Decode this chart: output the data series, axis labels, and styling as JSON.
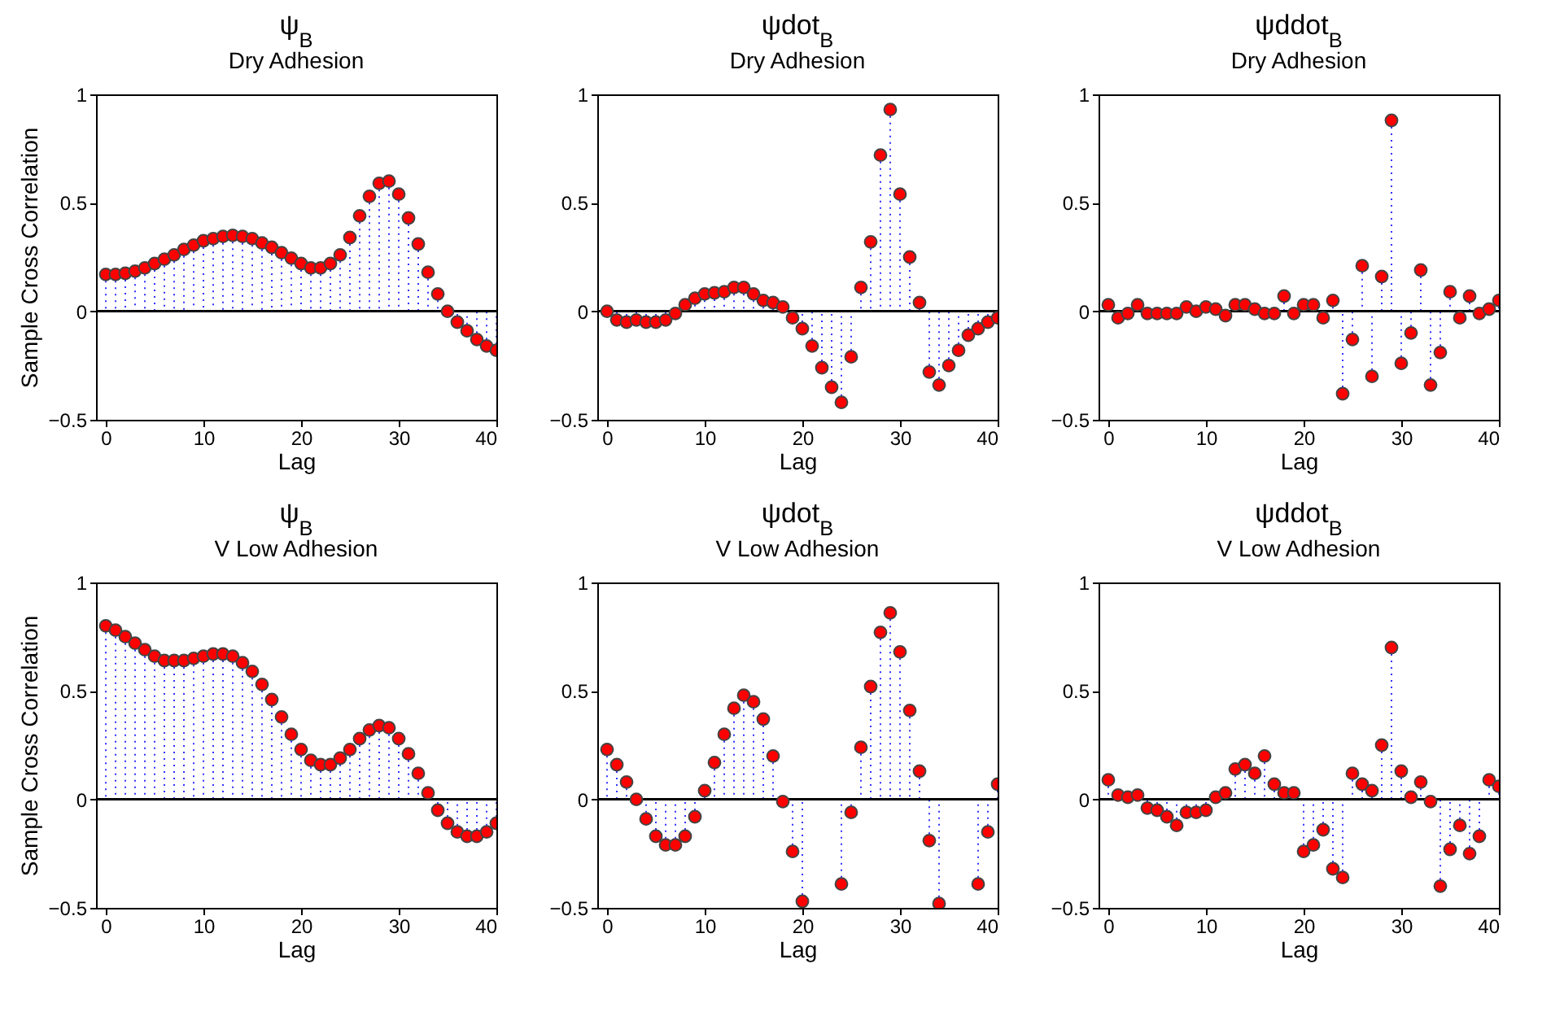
{
  "chart_data": [
    {
      "type": "lollipop",
      "title": "ψ$_{B}$",
      "subtitle": "Dry Adhesion",
      "xlabel": "Lag",
      "ylabel": "Sample Cross Correlation",
      "xlim": [
        -1,
        40
      ],
      "xticks": [
        0,
        10,
        20,
        30,
        40
      ],
      "ylim": [
        -0.5,
        1
      ],
      "yticks": [
        -0.5,
        0,
        0.5,
        1
      ],
      "marker": "circle",
      "line_style": "dotted",
      "grid": false,
      "x": [
        0,
        1,
        2,
        3,
        4,
        5,
        6,
        7,
        8,
        9,
        10,
        11,
        12,
        13,
        14,
        15,
        16,
        17,
        18,
        19,
        20,
        21,
        22,
        23,
        24,
        25,
        26,
        27,
        28,
        29,
        30,
        31,
        32,
        33,
        34,
        35,
        36,
        37,
        38,
        39,
        40
      ],
      "ref_lines": [
        {
          "axis": "y",
          "value": 0
        }
      ],
      "series": [
        {
          "color": "#ff0000",
          "values": [
            0.17,
            0.17,
            0.175,
            0.185,
            0.2,
            0.22,
            0.24,
            0.26,
            0.285,
            0.305,
            0.325,
            0.335,
            0.345,
            0.35,
            0.345,
            0.335,
            0.315,
            0.295,
            0.27,
            0.245,
            0.22,
            0.2,
            0.2,
            0.22,
            0.26,
            0.34,
            0.44,
            0.53,
            0.59,
            0.6,
            0.54,
            0.43,
            0.31,
            0.18,
            0.08,
            0,
            -0.05,
            -0.09,
            -0.13,
            -0.16,
            -0.18
          ]
        }
      ]
    },
    {
      "type": "lollipop",
      "title": "ψdot$_{B}$",
      "subtitle": "Dry Adhesion",
      "xlabel": "Lag",
      "xlim": [
        -1,
        40
      ],
      "xticks": [
        0,
        10,
        20,
        30,
        40
      ],
      "ylim": [
        -0.5,
        1
      ],
      "yticks": [
        -0.5,
        0,
        0.5,
        1
      ],
      "marker": "circle",
      "line_style": "dotted",
      "grid": false,
      "x": [
        0,
        1,
        2,
        3,
        4,
        5,
        6,
        7,
        8,
        9,
        10,
        11,
        12,
        13,
        14,
        15,
        16,
        17,
        18,
        19,
        20,
        21,
        22,
        23,
        24,
        25,
        26,
        27,
        28,
        29,
        30,
        31,
        32,
        33,
        34,
        35,
        36,
        37,
        38,
        39,
        40
      ],
      "ref_lines": [
        {
          "axis": "y",
          "value": 0
        }
      ],
      "series": [
        {
          "color": "#ff0000",
          "values": [
            0,
            -0.04,
            -0.05,
            -0.04,
            -0.05,
            -0.05,
            -0.04,
            -0.01,
            0.03,
            0.06,
            0.08,
            0.085,
            0.09,
            0.11,
            0.11,
            0.08,
            0.05,
            0.04,
            0.02,
            -0.03,
            -0.08,
            -0.16,
            -0.26,
            -0.35,
            -0.42,
            -0.21,
            0.11,
            0.32,
            0.72,
            0.93,
            0.54,
            0.25,
            0.04,
            -0.28,
            -0.34,
            -0.25,
            -0.18,
            -0.11,
            -0.08,
            -0.05,
            -0.03
          ]
        }
      ]
    },
    {
      "type": "lollipop",
      "title": "ψddot$_{B}$",
      "subtitle": "Dry Adhesion",
      "xlabel": "Lag",
      "xlim": [
        -1,
        40
      ],
      "xticks": [
        0,
        10,
        20,
        30,
        40
      ],
      "ylim": [
        -0.5,
        1
      ],
      "yticks": [
        -0.5,
        0,
        0.5,
        1
      ],
      "marker": "circle",
      "line_style": "dotted",
      "grid": false,
      "x": [
        0,
        1,
        2,
        3,
        4,
        5,
        6,
        7,
        8,
        9,
        10,
        11,
        12,
        13,
        14,
        15,
        16,
        17,
        18,
        19,
        20,
        21,
        22,
        23,
        24,
        25,
        26,
        27,
        28,
        29,
        30,
        31,
        32,
        33,
        34,
        35,
        36,
        37,
        38,
        39,
        40
      ],
      "ref_lines": [
        {
          "axis": "y",
          "value": 0
        }
      ],
      "series": [
        {
          "color": "#ff0000",
          "values": [
            0.03,
            -0.03,
            -0.01,
            0.03,
            -0.01,
            -0.01,
            -0.01,
            -0.01,
            0.02,
            0,
            0.02,
            0.01,
            -0.02,
            0.03,
            0.03,
            0.01,
            -0.01,
            -0.01,
            0.07,
            -0.01,
            0.03,
            0.03,
            -0.03,
            0.05,
            -0.38,
            -0.13,
            0.21,
            -0.3,
            0.16,
            0.88,
            -0.24,
            -0.1,
            0.19,
            -0.34,
            -0.19,
            0.09,
            -0.03,
            0.07,
            -0.01,
            0.01,
            0.05
          ]
        }
      ]
    },
    {
      "type": "lollipop",
      "title": "ψ$_{B}$",
      "subtitle": "V Low Adhesion",
      "xlabel": "Lag",
      "ylabel": "Sample Cross Correlation",
      "xlim": [
        -1,
        40
      ],
      "xticks": [
        0,
        10,
        20,
        30,
        40
      ],
      "ylim": [
        -0.5,
        1
      ],
      "yticks": [
        -0.5,
        0,
        0.5,
        1
      ],
      "marker": "circle",
      "line_style": "dotted",
      "grid": false,
      "x": [
        0,
        1,
        2,
        3,
        4,
        5,
        6,
        7,
        8,
        9,
        10,
        11,
        12,
        13,
        14,
        15,
        16,
        17,
        18,
        19,
        20,
        21,
        22,
        23,
        24,
        25,
        26,
        27,
        28,
        29,
        30,
        31,
        32,
        33,
        34,
        35,
        36,
        37,
        38,
        39,
        40
      ],
      "ref_lines": [
        {
          "axis": "y",
          "value": 0
        }
      ],
      "series": [
        {
          "color": "#ff0000",
          "values": [
            0.8,
            0.78,
            0.75,
            0.72,
            0.69,
            0.66,
            0.64,
            0.64,
            0.64,
            0.65,
            0.66,
            0.67,
            0.67,
            0.66,
            0.63,
            0.59,
            0.53,
            0.46,
            0.38,
            0.3,
            0.23,
            0.18,
            0.16,
            0.16,
            0.19,
            0.23,
            0.28,
            0.32,
            0.34,
            0.33,
            0.28,
            0.21,
            0.12,
            0.03,
            -0.05,
            -0.11,
            -0.15,
            -0.17,
            -0.17,
            -0.15,
            -0.11
          ]
        }
      ]
    },
    {
      "type": "lollipop",
      "title": "ψdot$_{B}$",
      "subtitle": "V Low Adhesion",
      "xlabel": "Lag",
      "xlim": [
        -1,
        40
      ],
      "xticks": [
        0,
        10,
        20,
        30,
        40
      ],
      "ylim": [
        -0.5,
        1
      ],
      "yticks": [
        -0.5,
        0,
        0.5,
        1
      ],
      "marker": "circle",
      "line_style": "dotted",
      "grid": false,
      "x": [
        0,
        1,
        2,
        3,
        4,
        5,
        6,
        7,
        8,
        9,
        10,
        11,
        12,
        13,
        14,
        15,
        16,
        17,
        18,
        19,
        20,
        21,
        22,
        23,
        24,
        25,
        26,
        27,
        28,
        29,
        30,
        31,
        32,
        33,
        34,
        35,
        36,
        37,
        38,
        39,
        40
      ],
      "ref_lines": [
        {
          "axis": "y",
          "value": 0
        }
      ],
      "series": [
        {
          "color": "#ff0000",
          "values": [
            0.23,
            0.16,
            0.08,
            0,
            -0.09,
            -0.17,
            -0.21,
            -0.21,
            -0.17,
            -0.08,
            0.04,
            0.17,
            0.3,
            0.42,
            0.48,
            0.45,
            0.37,
            0.2,
            -0.01,
            -0.24,
            -0.47,
            null,
            null,
            null,
            -0.39,
            -0.06,
            0.24,
            0.52,
            0.77,
            0.86,
            0.68,
            0.41,
            0.13,
            -0.19,
            -0.48,
            null,
            null,
            null,
            -0.39,
            -0.15,
            0.07
          ]
        }
      ]
    },
    {
      "type": "lollipop",
      "title": "ψddot$_{B}$",
      "subtitle": "V Low Adhesion",
      "xlabel": "Lag",
      "xlim": [
        -1,
        40
      ],
      "xticks": [
        0,
        10,
        20,
        30,
        40
      ],
      "ylim": [
        -0.5,
        1
      ],
      "yticks": [
        -0.5,
        0,
        0.5,
        1
      ],
      "marker": "circle",
      "line_style": "dotted",
      "grid": false,
      "x": [
        0,
        1,
        2,
        3,
        4,
        5,
        6,
        7,
        8,
        9,
        10,
        11,
        12,
        13,
        14,
        15,
        16,
        17,
        18,
        19,
        20,
        21,
        22,
        23,
        24,
        25,
        26,
        27,
        28,
        29,
        30,
        31,
        32,
        33,
        34,
        35,
        36,
        37,
        38,
        39,
        40
      ],
      "ref_lines": [
        {
          "axis": "y",
          "value": 0
        }
      ],
      "series": [
        {
          "color": "#ff0000",
          "values": [
            0.09,
            0.02,
            0.01,
            0.02,
            -0.04,
            -0.05,
            -0.08,
            -0.12,
            -0.06,
            -0.06,
            -0.05,
            0.01,
            0.03,
            0.14,
            0.16,
            0.12,
            0.2,
            0.07,
            0.03,
            0.03,
            -0.24,
            -0.21,
            -0.14,
            -0.32,
            -0.36,
            0.12,
            0.07,
            0.04,
            0.25,
            0.7,
            0.13,
            0.01,
            0.08,
            -0.01,
            -0.4,
            -0.23,
            -0.12,
            -0.25,
            -0.17,
            0.09,
            0.06
          ]
        }
      ]
    }
  ]
}
